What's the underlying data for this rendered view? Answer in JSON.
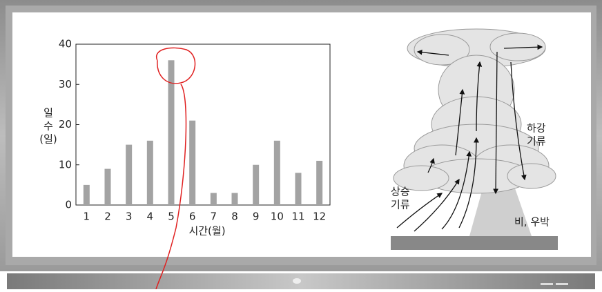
{
  "chart_data": {
    "type": "bar",
    "categories": [
      "1",
      "2",
      "3",
      "4",
      "5",
      "6",
      "7",
      "8",
      "9",
      "10",
      "11",
      "12"
    ],
    "values": [
      5,
      9,
      15,
      16,
      36,
      21,
      3,
      3,
      10,
      16,
      8,
      11
    ],
    "color": "#a3a3a3",
    "ylim": [
      0,
      40
    ],
    "yticks": [
      0,
      10,
      20,
      30,
      40
    ],
    "ylabel": [
      "일",
      "수",
      "(일)"
    ],
    "xlabel": "시간(월)"
  },
  "diagram": {
    "labels": [
      [
        "하강",
        "기류"
      ],
      [
        "상승",
        "기류"
      ],
      [
        "비, 우박"
      ]
    ]
  }
}
